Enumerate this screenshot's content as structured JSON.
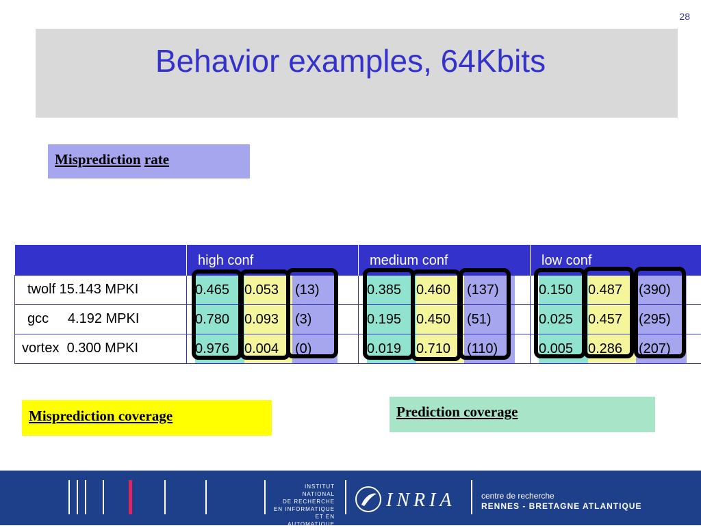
{
  "slide": {
    "page_number": "28",
    "title": "Behavior examples, 64Kbits"
  },
  "legend": {
    "misprediction_rate": "Misprediction",
    "misprediction_rate_2": "rate",
    "misprediction_coverage": "Misprediction coverage",
    "prediction_coverage": "Prediction coverage"
  },
  "table": {
    "headers": [
      "",
      "high conf",
      "medium conf",
      "low conf"
    ],
    "rows": [
      {
        "bench": "twolf 15.143 MPKI",
        "high": [
          "0.465",
          "0.053",
          "(13)"
        ],
        "medium": [
          "0.385",
          "0.460",
          "(137)"
        ],
        "low": [
          "0.150",
          "0.487",
          "(390)"
        ]
      },
      {
        "bench": "gcc     4.192 MPKI",
        "high": [
          "0.780",
          "0.093",
          "(3)"
        ],
        "medium": [
          "0.195",
          "0.450",
          "(51)"
        ],
        "low": [
          "0.025",
          "0.457",
          "(295)"
        ]
      },
      {
        "bench": "vortex  0.300 MPKI",
        "high": [
          "0.976",
          "0.004",
          "(0)"
        ],
        "medium": [
          "0.019",
          "0.710",
          "(110)"
        ],
        "low": [
          "0.005",
          "0.286",
          "(207)"
        ]
      }
    ]
  },
  "footer": {
    "institute_lines": [
      "INSTITUT NATIONAL",
      "DE RECHERCHE",
      "EN INFORMATIQUE",
      "ET EN AUTOMATIQUE"
    ],
    "logo_text": "INRIA",
    "centre_line1": "centre de recherche",
    "centre_line2": "RENNES - BRETAGNE ATLANTIQUE"
  },
  "colors": {
    "title": "#3333cc",
    "header_bg": "#3333cc",
    "misprediction_rate": "#a6a6ee",
    "misprediction_coverage": "#ffff00",
    "prediction_coverage": "#a8e4c8",
    "footer_bg": "#1e3f8a"
  }
}
